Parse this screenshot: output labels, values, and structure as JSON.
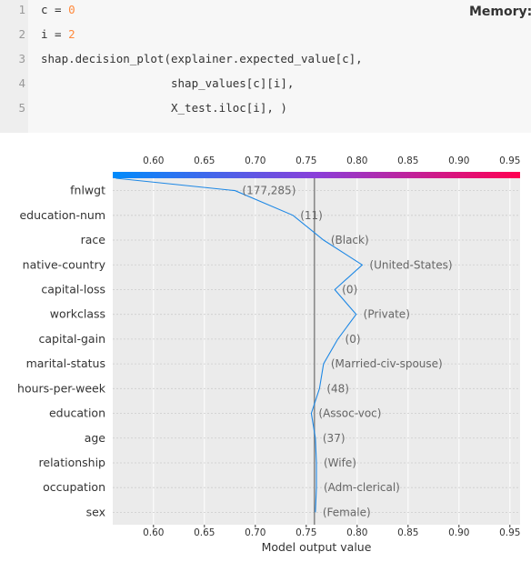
{
  "code_cell": {
    "memory_label": "Memory:",
    "lines": [
      {
        "no": "1",
        "pre": "c = ",
        "num": "0",
        "post": ""
      },
      {
        "no": "2",
        "pre": "i = ",
        "num": "2",
        "post": ""
      },
      {
        "no": "3",
        "pre": "shap.decision_plot(explainer.expected_value[c],",
        "num": "",
        "post": ""
      },
      {
        "no": "4",
        "pre": "                   shap_values[c][i],",
        "num": "",
        "post": ""
      },
      {
        "no": "5",
        "pre": "                   X_test.iloc[i], )",
        "num": "",
        "post": ""
      }
    ]
  },
  "chart_data": {
    "type": "line",
    "xlabel": "Model output value",
    "xlim": [
      0.56,
      0.96
    ],
    "xticks": [
      "0.60",
      "0.65",
      "0.70",
      "0.75",
      "0.80",
      "0.85",
      "0.90",
      "0.95"
    ],
    "expected_value": 0.758,
    "colorbar": [
      "#008bfb",
      "#ff0051"
    ],
    "features": [
      "fnlwgt",
      "education-num",
      "race",
      "native-country",
      "capital-loss",
      "workclass",
      "capital-gain",
      "marital-status",
      "hours-per-week",
      "education",
      "age",
      "relationship",
      "occupation",
      "sex"
    ],
    "feature_values": [
      "(177,285)",
      "(11)",
      "(Black)",
      "(United-States)",
      "(0)",
      "(Private)",
      "(0)",
      "(Married-civ-spouse)",
      "(48)",
      "(Assoc-voc)",
      "(37)",
      "(Wife)",
      "(Adm-clerical)",
      "(Female)"
    ],
    "path": [
      0.563,
      0.68,
      0.737,
      0.767,
      0.805,
      0.778,
      0.799,
      0.781,
      0.767,
      0.763,
      0.755,
      0.759,
      0.76,
      0.76,
      0.759
    ]
  }
}
